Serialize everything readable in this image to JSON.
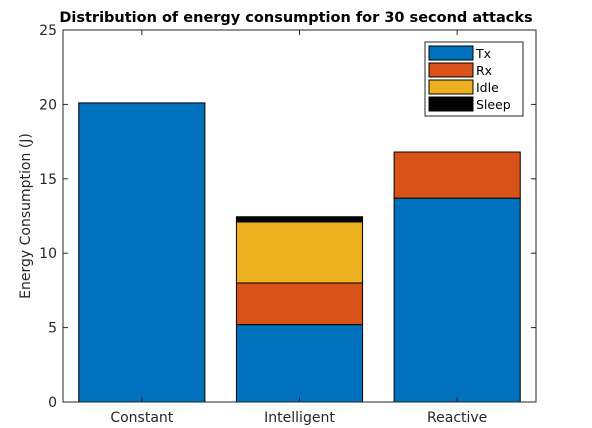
{
  "chart_data": {
    "type": "bar",
    "stacked": true,
    "title": "Distribution of energy consumption for 30 second attacks",
    "xlabel": "",
    "ylabel": "Energy Consumption (J)",
    "ylim": [
      0,
      25
    ],
    "yticks": [
      "0",
      "5",
      "10",
      "15",
      "20",
      "25"
    ],
    "categories": [
      "Constant",
      "Intelligent",
      "Reactive"
    ],
    "series": [
      {
        "name": "Tx",
        "color": "#0072BD",
        "values": [
          20.1,
          5.2,
          13.7
        ]
      },
      {
        "name": "Rx",
        "color": "#D95319",
        "values": [
          0,
          2.8,
          3.1
        ]
      },
      {
        "name": "Idle",
        "color": "#EDB120",
        "values": [
          0,
          4.1,
          0
        ]
      },
      {
        "name": "Sleep",
        "color": "#000000",
        "values": [
          0,
          0.35,
          0
        ]
      }
    ],
    "grid": false,
    "legend_position": "top-right"
  }
}
